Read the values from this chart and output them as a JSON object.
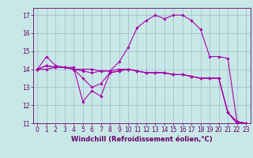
{
  "title": "",
  "xlabel": "Windchill (Refroidissement éolien,°C)",
  "ylabel": "",
  "background_color": "#c8e8e8",
  "grid_color": "#a0b8c8",
  "line_color": "#aa00aa",
  "xlim": [
    -0.5,
    23.5
  ],
  "ylim": [
    11.0,
    17.4
  ],
  "yticks": [
    11,
    12,
    13,
    14,
    15,
    16,
    17
  ],
  "xticks": [
    0,
    1,
    2,
    3,
    4,
    5,
    6,
    7,
    8,
    9,
    10,
    11,
    12,
    13,
    14,
    15,
    16,
    17,
    18,
    19,
    20,
    21,
    22,
    23
  ],
  "series": [
    [
      14.0,
      14.7,
      14.2,
      14.1,
      14.1,
      12.2,
      12.8,
      12.5,
      13.8,
      13.9,
      14.0,
      13.9,
      13.8,
      13.8,
      13.8,
      13.7,
      13.7,
      13.6,
      13.5,
      13.5,
      13.5,
      11.6,
      11.1,
      11.0
    ],
    [
      14.0,
      14.0,
      14.1,
      14.1,
      14.0,
      14.0,
      14.0,
      13.9,
      13.9,
      14.4,
      15.2,
      16.3,
      16.7,
      17.0,
      16.8,
      17.0,
      17.0,
      16.7,
      16.2,
      14.7,
      14.7,
      14.6,
      11.1,
      11.0
    ],
    [
      14.0,
      14.2,
      14.1,
      14.1,
      14.0,
      13.5,
      13.0,
      13.2,
      13.8,
      13.9,
      14.0,
      13.9,
      13.8,
      13.8,
      13.8,
      13.7,
      13.7,
      13.6,
      13.5,
      13.5,
      13.5,
      11.6,
      11.0,
      11.0
    ],
    [
      14.0,
      14.2,
      14.1,
      14.1,
      14.0,
      13.9,
      13.8,
      13.9,
      13.9,
      14.0,
      14.0,
      13.9,
      13.8,
      13.8,
      13.8,
      13.7,
      13.7,
      13.6,
      13.5,
      13.5,
      13.5,
      11.6,
      11.0,
      11.0
    ]
  ],
  "tick_fontsize": 5.5,
  "xlabel_fontsize": 6.0,
  "tick_color": "#660066",
  "spine_color": "#660066"
}
